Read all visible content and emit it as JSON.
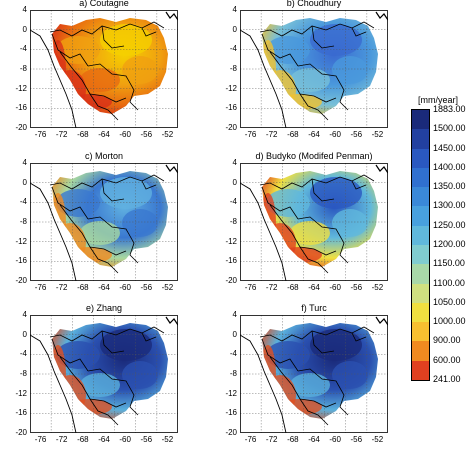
{
  "panels": [
    {
      "id": "a",
      "title": "a) Coutagne",
      "palette": "hot"
    },
    {
      "id": "b",
      "title": "b) Choudhury",
      "palette": "cool"
    },
    {
      "id": "c",
      "title": "c) Morton",
      "palette": "mid"
    },
    {
      "id": "d",
      "title": "d) Budyko (Modifed Penman)",
      "palette": "mid2"
    },
    {
      "id": "e",
      "title": "e) Zhang",
      "palette": "deep"
    },
    {
      "id": "f",
      "title": "f) Turc",
      "palette": "deep"
    }
  ],
  "y_ticks": [
    "4",
    "0",
    "-4",
    "-8",
    "-12",
    "-16",
    "-20"
  ],
  "x_ticks": [
    "-76",
    "-72",
    "-68",
    "-64",
    "-60",
    "-56",
    "-52"
  ],
  "colorbar": {
    "unit": "[mm/year]",
    "levels": [
      "1883.00",
      "1500.00",
      "1450.00",
      "1400.00",
      "1350.00",
      "1300.00",
      "1250.00",
      "1200.00",
      "1150.00",
      "1100.00",
      "1050.00",
      "1000.00",
      "900.00",
      "600.00",
      "241.00"
    ],
    "colors": [
      "#1a2a7a",
      "#2240a0",
      "#2a58c0",
      "#3070d0",
      "#3a88d8",
      "#48a0de",
      "#60b8dc",
      "#80ccd0",
      "#a8d8a8",
      "#d0e080",
      "#f0e040",
      "#f8c030",
      "#f08a20",
      "#e04020"
    ]
  }
}
